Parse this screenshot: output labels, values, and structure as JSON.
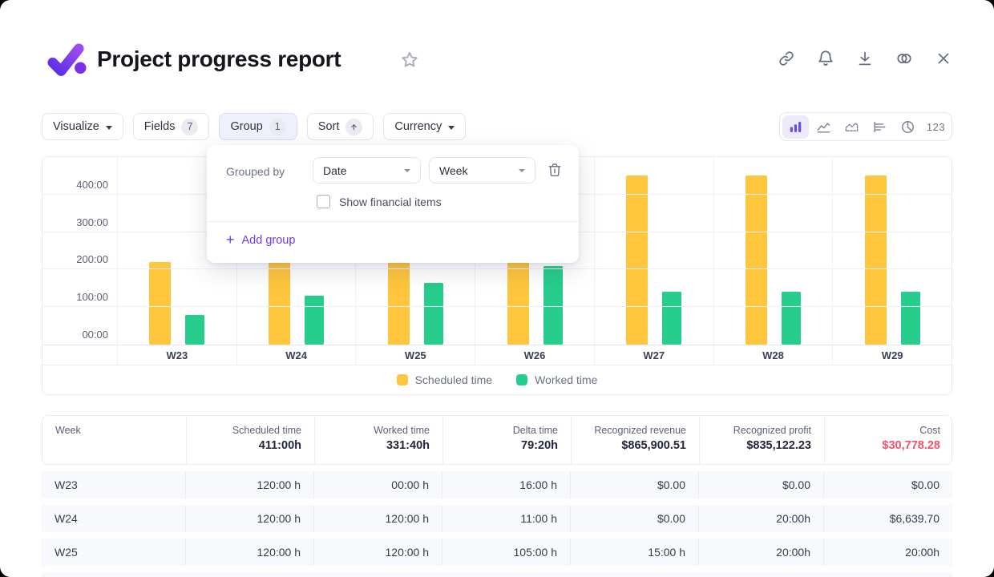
{
  "header": {
    "title": "Project progress report",
    "action_icons": [
      "link",
      "notifications",
      "download",
      "integrations",
      "close"
    ]
  },
  "toolbar": {
    "buttons": [
      {
        "id": "visualize",
        "label": "Visualize",
        "caret": true
      },
      {
        "id": "fields",
        "label": "Fields",
        "badge": "7"
      },
      {
        "id": "group",
        "label": "Group",
        "badge": "1",
        "active": true
      },
      {
        "id": "sort",
        "label": "Sort",
        "arrow_up": true
      },
      {
        "id": "currency",
        "label": "Currency",
        "caret": true
      }
    ],
    "view_switcher": {
      "options": [
        "bar-chart",
        "line-chart",
        "area-chart",
        "horizontal-bar-chart",
        "pie-chart",
        "numbers"
      ],
      "selected": "bar-chart",
      "numbers_label": "123"
    }
  },
  "group_popup": {
    "grouped_by_label": "Grouped by",
    "field_value": "Date",
    "interval_value": "Week",
    "show_financial_label": "Show financial items",
    "show_financial_checked": false,
    "add_group_label": "Add group"
  },
  "chart_data": {
    "type": "bar",
    "categories": [
      "W23",
      "W24",
      "W25",
      "W26",
      "W27",
      "W28",
      "W29"
    ],
    "series": [
      {
        "name": "Scheduled time",
        "color": "#FFC53D",
        "values": [
          220,
          450,
          450,
          450,
          450,
          450,
          450
        ]
      },
      {
        "name": "Worked time",
        "color": "#27CD8C",
        "values": [
          80,
          130,
          165,
          210,
          140,
          140,
          140
        ]
      }
    ],
    "unit": "hours",
    "ylim": [
      0,
      500
    ],
    "yticks": [
      {
        "value": 0,
        "label": "00:00"
      },
      {
        "value": 100,
        "label": "100:00"
      },
      {
        "value": 200,
        "label": "200:00"
      },
      {
        "value": 300,
        "label": "300:00"
      },
      {
        "value": 400,
        "label": "400:00"
      }
    ],
    "grid": true,
    "legend_position": "bottom"
  },
  "table": {
    "columns": [
      {
        "label": "Week",
        "total": ""
      },
      {
        "label": "Scheduled time",
        "total": "411:00h"
      },
      {
        "label": "Worked time",
        "total": "331:40h"
      },
      {
        "label": "Delta time",
        "total": "79:20h"
      },
      {
        "label": "Recognized revenue",
        "total": "$865,900.51"
      },
      {
        "label": "Recognized profit",
        "total": "$835,122.23"
      },
      {
        "label": "Cost",
        "total": "$30,778.28",
        "total_red": true
      }
    ],
    "rows": [
      [
        "W23",
        "120:00 h",
        "00:00 h",
        "16:00 h",
        "$0.00",
        "$0.00",
        "$0.00"
      ],
      [
        "W24",
        "120:00 h",
        "120:00 h",
        "11:00 h",
        "$0.00",
        "20:00h",
        "$6,639.70"
      ],
      [
        "W25",
        "120:00 h",
        "120:00 h",
        "105:00 h",
        "15:00 h",
        "20:00h",
        "20:00h"
      ]
    ],
    "partial_row_visible": true
  },
  "colors": {
    "accent": "#6A3BF1",
    "scheduled": "#FFC53D",
    "worked": "#27CD8C",
    "cost_red": "#F4516C",
    "icon_gray": "#676C83"
  }
}
